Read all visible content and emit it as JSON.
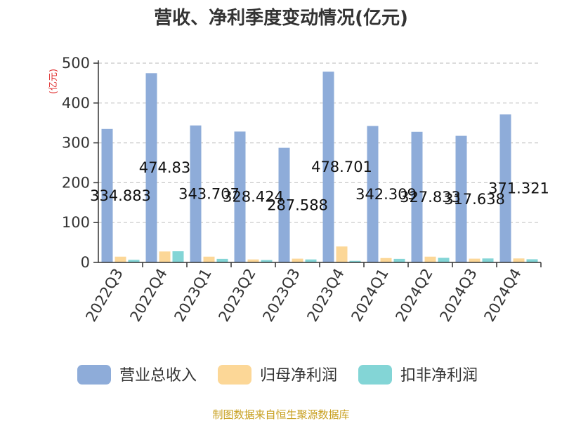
{
  "chart_data": {
    "type": "bar",
    "title": "营收、净利季度变动情况(亿元)",
    "unit_label": "(亿元)",
    "categories": [
      "2022Q3",
      "2022Q4",
      "2023Q1",
      "2023Q2",
      "2023Q3",
      "2023Q4",
      "2024Q1",
      "2024Q2",
      "2024Q3",
      "2024Q4"
    ],
    "ylim": [
      0,
      500
    ],
    "yticks": [
      "0",
      "100",
      "200",
      "300",
      "400",
      "500"
    ],
    "grid": true,
    "legend_position": "bottom",
    "series": [
      {
        "name": "营业总收入",
        "color": "#8eacd9",
        "values": [
          334.883,
          474.83,
          343.707,
          328.424,
          287.588,
          478.701,
          342.309,
          327.833,
          317.638,
          371.321
        ],
        "labels": [
          "334.883",
          "474.83",
          "343.707",
          "328.424",
          "287.588",
          "478.701",
          "342.309",
          "327.833",
          "317.638",
          "371.321"
        ]
      },
      {
        "name": "归母净利润",
        "color": "#fcd797",
        "values": [
          14.5,
          27.5,
          14.5,
          7.5,
          9.5,
          40.0,
          11.0,
          14.5,
          9.5,
          10.0
        ]
      },
      {
        "name": "扣非净利润",
        "color": "#83d5d6",
        "values": [
          6.5,
          28.0,
          9.0,
          6.0,
          7.5,
          4.0,
          9.0,
          11.5,
          10.0,
          8.0
        ]
      }
    ]
  },
  "source": "制图数据来自恒生聚源数据库"
}
